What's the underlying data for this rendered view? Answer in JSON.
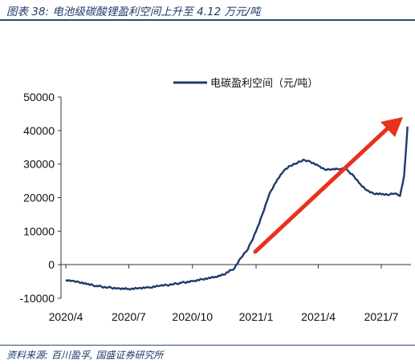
{
  "figure": {
    "title": "图表 38:  电池级碳酸锂盈利空间上升至 4.12 万元/吨",
    "source": "资料来源:  百川盈孚,  国盛证券研究所"
  },
  "colors": {
    "series": "#1f3a6b",
    "arrow": "#e8321e",
    "axis": "#333333"
  },
  "chart_data": {
    "type": "line",
    "title": "",
    "xlabel": "",
    "ylabel": "",
    "x_tick_labels": [
      "2020/4",
      "2020/7",
      "2020/10",
      "2021/1",
      "2021/4",
      "2021/7"
    ],
    "y_tick_labels": [
      "-10000",
      "0",
      "10000",
      "20000",
      "30000",
      "40000",
      "50000"
    ],
    "ylim": [
      -10000,
      50000
    ],
    "legend_position": "top-center",
    "series": [
      {
        "name": "电碳盈利空间（元/吨）",
        "x": [
          "2020-04-01",
          "2020-04-10",
          "2020-04-20",
          "2020-05-01",
          "2020-05-15",
          "2020-06-01",
          "2020-06-15",
          "2020-07-01",
          "2020-07-15",
          "2020-08-01",
          "2020-08-15",
          "2020-09-01",
          "2020-09-15",
          "2020-10-01",
          "2020-10-15",
          "2020-11-01",
          "2020-11-15",
          "2020-12-01",
          "2020-12-10",
          "2020-12-20",
          "2021-01-01",
          "2021-01-10",
          "2021-01-20",
          "2021-02-01",
          "2021-02-10",
          "2021-02-20",
          "2021-03-01",
          "2021-03-10",
          "2021-03-20",
          "2021-04-01",
          "2021-04-10",
          "2021-04-20",
          "2021-05-01",
          "2021-05-10",
          "2021-05-20",
          "2021-06-01",
          "2021-06-10",
          "2021-06-20",
          "2021-07-01",
          "2021-07-10",
          "2021-07-20",
          "2021-07-28",
          "2021-08-03",
          "2021-08-08"
        ],
        "values": [
          -4500,
          -4800,
          -5200,
          -5800,
          -6300,
          -6800,
          -7000,
          -7200,
          -7000,
          -6800,
          -6300,
          -5900,
          -5400,
          -4900,
          -4300,
          -3800,
          -3000,
          -1000,
          2000,
          4500,
          10000,
          15000,
          21000,
          25500,
          28000,
          29500,
          30200,
          31300,
          30800,
          29500,
          28400,
          28400,
          28500,
          28500,
          27000,
          24000,
          22200,
          21200,
          21000,
          20800,
          21200,
          20500,
          26500,
          41200
        ]
      }
    ]
  }
}
